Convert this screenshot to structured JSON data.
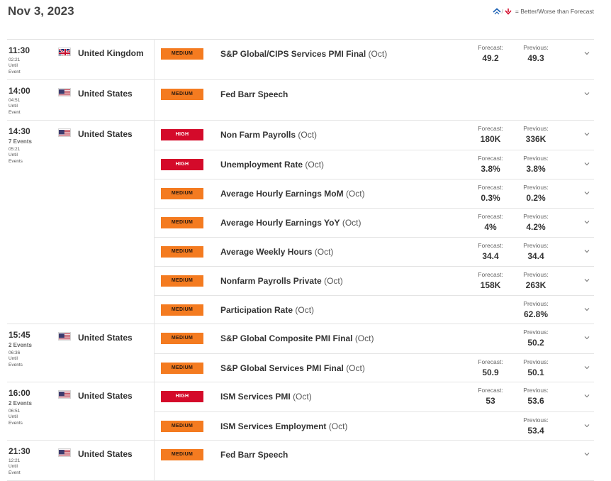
{
  "date": "Nov 3, 2023",
  "legend_text": "= Better/Worse than Forecast",
  "labels": {
    "forecast": "Forecast:",
    "previous": "Previous:"
  },
  "colors": {
    "medium": "#f47b20",
    "high": "#d40a2a"
  },
  "groups": [
    {
      "time": "11:30",
      "events_count": "",
      "countdown": [
        "02:21",
        "Until",
        "Event"
      ],
      "country": "United Kingdom",
      "flag": "uk-flag-icon",
      "rows": [
        {
          "impact": "MEDIUM",
          "name": "S&P Global/CIPS Services PMI Final",
          "period": "(Oct)",
          "forecast": "49.2",
          "previous": "49.3"
        }
      ]
    },
    {
      "time": "14:00",
      "events_count": "",
      "countdown": [
        "04:51",
        "Until",
        "Event"
      ],
      "country": "United States",
      "flag": "us-flag-icon",
      "rows": [
        {
          "impact": "MEDIUM",
          "name": "Fed Barr Speech",
          "period": "",
          "forecast": "",
          "previous": ""
        }
      ]
    },
    {
      "time": "14:30",
      "events_count": "7 Events",
      "countdown": [
        "05:21",
        "Until",
        "Events"
      ],
      "country": "United States",
      "flag": "us-flag-icon",
      "rows": [
        {
          "impact": "HIGH",
          "name": "Non Farm Payrolls",
          "period": "(Oct)",
          "forecast": "180K",
          "previous": "336K"
        },
        {
          "impact": "HIGH",
          "name": "Unemployment Rate",
          "period": "(Oct)",
          "forecast": "3.8%",
          "previous": "3.8%"
        },
        {
          "impact": "MEDIUM",
          "name": "Average Hourly Earnings MoM",
          "period": "(Oct)",
          "forecast": "0.3%",
          "previous": "0.2%"
        },
        {
          "impact": "MEDIUM",
          "name": "Average Hourly Earnings YoY",
          "period": "(Oct)",
          "forecast": "4%",
          "previous": "4.2%"
        },
        {
          "impact": "MEDIUM",
          "name": "Average Weekly Hours",
          "period": "(Oct)",
          "forecast": "34.4",
          "previous": "34.4"
        },
        {
          "impact": "MEDIUM",
          "name": "Nonfarm Payrolls Private",
          "period": "(Oct)",
          "forecast": "158K",
          "previous": "263K"
        },
        {
          "impact": "MEDIUM",
          "name": "Participation Rate",
          "period": "(Oct)",
          "forecast": "",
          "previous": "62.8%"
        }
      ]
    },
    {
      "time": "15:45",
      "events_count": "2 Events",
      "countdown": [
        "06:36",
        "Until",
        "Events"
      ],
      "country": "United States",
      "flag": "us-flag-icon",
      "rows": [
        {
          "impact": "MEDIUM",
          "name": "S&P Global Composite PMI Final",
          "period": "(Oct)",
          "forecast": "",
          "previous": "50.2"
        },
        {
          "impact": "MEDIUM",
          "name": "S&P Global Services PMI Final",
          "period": "(Oct)",
          "forecast": "50.9",
          "previous": "50.1"
        }
      ]
    },
    {
      "time": "16:00",
      "events_count": "2 Events",
      "countdown": [
        "06:51",
        "Until",
        "Events"
      ],
      "country": "United States",
      "flag": "us-flag-icon",
      "rows": [
        {
          "impact": "HIGH",
          "name": "ISM Services PMI",
          "period": "(Oct)",
          "forecast": "53",
          "previous": "53.6"
        },
        {
          "impact": "MEDIUM",
          "name": "ISM Services Employment",
          "period": "(Oct)",
          "forecast": "",
          "previous": "53.4"
        }
      ]
    },
    {
      "time": "21:30",
      "events_count": "",
      "countdown": [
        "12:21",
        "Until",
        "Event"
      ],
      "country": "United States",
      "flag": "us-flag-icon",
      "rows": [
        {
          "impact": "MEDIUM",
          "name": "Fed Barr Speech",
          "period": "",
          "forecast": "",
          "previous": ""
        }
      ]
    }
  ]
}
